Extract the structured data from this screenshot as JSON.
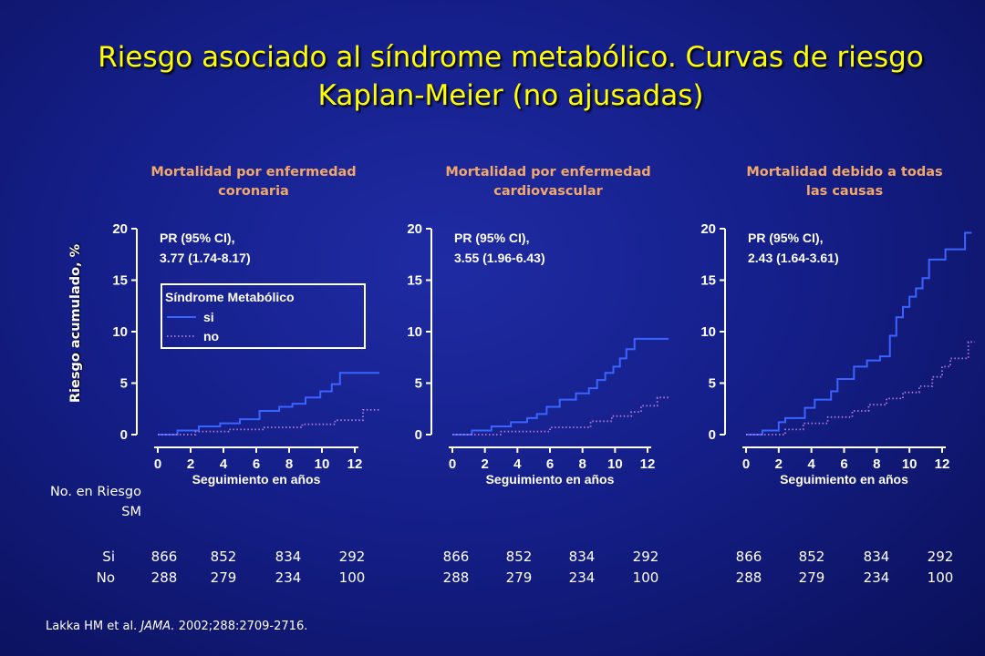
{
  "title_line1": "Riesgo asociado al síndrome metabólico. Curvas de riesgo",
  "title_line2": "Kaplan-Meier (no ajusadas)",
  "ylabel": "Riesgo acumulado, %",
  "risk_table": {
    "heading_line1": "No. en Riesgo",
    "heading_line2": "SM",
    "row_labels": [
      "Si",
      "No"
    ]
  },
  "citation": {
    "authors": "Lakka HM et al. ",
    "journal": "JAMA.",
    "ref": " 2002;288:2709-2716."
  },
  "colors": {
    "title": "#ffff00",
    "panel_title": "#f2a86a",
    "si_line": "#3a63ff",
    "no_line": "#b07ad8",
    "axis": "#ffffff"
  },
  "chart_data": [
    {
      "type": "line",
      "title_line1": "Mortalidad por enfermedad",
      "title_line2": "coronaria",
      "xlabel": "Seguimiento en años",
      "x_ticks": [
        0,
        2,
        4,
        6,
        8,
        10,
        12
      ],
      "y_ticks": [
        0,
        5,
        10,
        15,
        20
      ],
      "xlim": [
        0,
        13.5
      ],
      "ylim": [
        0,
        20
      ],
      "annotation_line1": "PR (95% CI),",
      "annotation_line2": "3.77 (1.74-8.17)",
      "legend": {
        "title": "Síndrome Metabólico",
        "entries": [
          "si",
          "no"
        ],
        "placement": "upper-center"
      },
      "series": [
        {
          "name": "si",
          "style": "solid",
          "points": [
            [
              0,
              0
            ],
            [
              1.2,
              0
            ],
            [
              1.2,
              0.4
            ],
            [
              2.5,
              0.4
            ],
            [
              2.5,
              0.8
            ],
            [
              3.8,
              0.8
            ],
            [
              3.8,
              1.1
            ],
            [
              5,
              1.1
            ],
            [
              5,
              1.5
            ],
            [
              6.2,
              1.5
            ],
            [
              6.2,
              2.3
            ],
            [
              7.4,
              2.3
            ],
            [
              7.4,
              2.7
            ],
            [
              8.2,
              2.7
            ],
            [
              8.2,
              3.0
            ],
            [
              9,
              3.0
            ],
            [
              9,
              3.6
            ],
            [
              9.9,
              3.6
            ],
            [
              9.9,
              4.2
            ],
            [
              10.6,
              4.2
            ],
            [
              10.6,
              4.9
            ],
            [
              11.1,
              4.9
            ],
            [
              11.1,
              6.0
            ],
            [
              13.5,
              6.0
            ]
          ]
        },
        {
          "name": "no",
          "style": "dotted",
          "points": [
            [
              0,
              0
            ],
            [
              2.3,
              0
            ],
            [
              2.3,
              0.3
            ],
            [
              4.3,
              0.3
            ],
            [
              4.3,
              0.5
            ],
            [
              6.4,
              0.5
            ],
            [
              6.4,
              0.7
            ],
            [
              8.8,
              0.7
            ],
            [
              8.8,
              1.0
            ],
            [
              10.8,
              1.0
            ],
            [
              10.8,
              1.4
            ],
            [
              12.5,
              1.4
            ],
            [
              12.5,
              2.4
            ],
            [
              13.5,
              2.4
            ]
          ]
        }
      ],
      "risk_si": [
        866,
        852,
        834,
        292
      ],
      "risk_no": [
        288,
        279,
        234,
        100
      ]
    },
    {
      "type": "line",
      "title_line1": "Mortalidad por enfermedad",
      "title_line2": "cardiovascular",
      "xlabel": "Seguimiento en años",
      "x_ticks": [
        0,
        2,
        4,
        6,
        8,
        10,
        12
      ],
      "y_ticks": [
        0,
        5,
        10,
        15,
        20
      ],
      "xlim": [
        0,
        13.5
      ],
      "ylim": [
        0,
        20
      ],
      "annotation_line1": "PR (95% CI),",
      "annotation_line2": "3.55 (1.96-6.43)",
      "series": [
        {
          "name": "si",
          "style": "solid",
          "points": [
            [
              0,
              0
            ],
            [
              1.2,
              0
            ],
            [
              1.2,
              0.4
            ],
            [
              2.4,
              0.4
            ],
            [
              2.4,
              0.8
            ],
            [
              3.6,
              0.8
            ],
            [
              3.6,
              1.2
            ],
            [
              4.6,
              1.2
            ],
            [
              4.6,
              1.6
            ],
            [
              5.2,
              1.6
            ],
            [
              5.2,
              2.0
            ],
            [
              5.8,
              2.0
            ],
            [
              5.8,
              2.7
            ],
            [
              6.6,
              2.7
            ],
            [
              6.6,
              3.4
            ],
            [
              7.6,
              3.4
            ],
            [
              7.6,
              4.0
            ],
            [
              8.4,
              4.0
            ],
            [
              8.4,
              4.5
            ],
            [
              8.9,
              4.5
            ],
            [
              8.9,
              5.3
            ],
            [
              9.4,
              5.3
            ],
            [
              9.4,
              6.0
            ],
            [
              9.9,
              6.0
            ],
            [
              9.9,
              6.6
            ],
            [
              10.3,
              6.6
            ],
            [
              10.3,
              7.4
            ],
            [
              10.7,
              7.4
            ],
            [
              10.7,
              8.3
            ],
            [
              11.2,
              8.3
            ],
            [
              11.2,
              9.3
            ],
            [
              13.3,
              9.3
            ]
          ]
        },
        {
          "name": "no",
          "style": "dotted",
          "points": [
            [
              0,
              0
            ],
            [
              3,
              0
            ],
            [
              3,
              0.3
            ],
            [
              6,
              0.3
            ],
            [
              6,
              0.7
            ],
            [
              8.5,
              0.7
            ],
            [
              8.5,
              1.3
            ],
            [
              9.8,
              1.3
            ],
            [
              9.8,
              1.8
            ],
            [
              11,
              1.8
            ],
            [
              11,
              2.2
            ],
            [
              11.6,
              2.2
            ],
            [
              11.6,
              2.8
            ],
            [
              12.6,
              2.8
            ],
            [
              12.6,
              3.6
            ],
            [
              13.3,
              3.6
            ]
          ]
        }
      ],
      "risk_si": [
        866,
        852,
        834,
        292
      ],
      "risk_no": [
        288,
        279,
        234,
        100
      ]
    },
    {
      "type": "line",
      "title_line1": "Mortalidad debido a todas",
      "title_line2": "las causas",
      "xlabel": "Seguimiento en años",
      "x_ticks": [
        0,
        2,
        4,
        6,
        8,
        10,
        12
      ],
      "y_ticks": [
        0,
        5,
        10,
        15,
        20
      ],
      "xlim": [
        0,
        13.5
      ],
      "ylim": [
        0,
        20
      ],
      "annotation_line1": "PR (95% CI),",
      "annotation_line2": "2.43 (1.64-3.61)",
      "series": [
        {
          "name": "si",
          "style": "solid",
          "points": [
            [
              0,
              0
            ],
            [
              1,
              0
            ],
            [
              1,
              0.4
            ],
            [
              2,
              0.4
            ],
            [
              2,
              1.2
            ],
            [
              2.4,
              1.2
            ],
            [
              2.4,
              1.6
            ],
            [
              3.6,
              1.6
            ],
            [
              3.6,
              2.6
            ],
            [
              4.2,
              2.6
            ],
            [
              4.2,
              3.4
            ],
            [
              5.2,
              3.4
            ],
            [
              5.2,
              4.2
            ],
            [
              5.6,
              4.2
            ],
            [
              5.6,
              5.4
            ],
            [
              6.6,
              5.4
            ],
            [
              6.6,
              6.6
            ],
            [
              7.4,
              6.6
            ],
            [
              7.4,
              7.2
            ],
            [
              8.2,
              7.2
            ],
            [
              8.2,
              7.6
            ],
            [
              8.8,
              7.6
            ],
            [
              8.8,
              9.6
            ],
            [
              9.2,
              9.6
            ],
            [
              9.2,
              11.4
            ],
            [
              9.6,
              11.4
            ],
            [
              9.6,
              12.4
            ],
            [
              10,
              12.4
            ],
            [
              10,
              13.4
            ],
            [
              10.4,
              13.4
            ],
            [
              10.4,
              14.2
            ],
            [
              10.8,
              14.2
            ],
            [
              10.8,
              15.2
            ],
            [
              11.2,
              15.2
            ],
            [
              11.2,
              17.0
            ],
            [
              12.2,
              17.0
            ],
            [
              12.2,
              18.0
            ],
            [
              13.4,
              18.0
            ],
            [
              13.4,
              19.6
            ],
            [
              13.8,
              19.6
            ]
          ]
        },
        {
          "name": "no",
          "style": "dotted",
          "points": [
            [
              0,
              0
            ],
            [
              2.4,
              0
            ],
            [
              2.4,
              0.5
            ],
            [
              3.5,
              0.5
            ],
            [
              3.5,
              1.1
            ],
            [
              5,
              1.1
            ],
            [
              5,
              1.7
            ],
            [
              6.5,
              1.7
            ],
            [
              6.5,
              2.3
            ],
            [
              7.5,
              2.3
            ],
            [
              7.5,
              2.9
            ],
            [
              8.6,
              2.9
            ],
            [
              8.6,
              3.5
            ],
            [
              9.6,
              3.5
            ],
            [
              9.6,
              4.1
            ],
            [
              10.6,
              4.1
            ],
            [
              10.6,
              4.7
            ],
            [
              11.4,
              4.7
            ],
            [
              11.4,
              5.6
            ],
            [
              12,
              5.6
            ],
            [
              12,
              6.6
            ],
            [
              12.5,
              6.6
            ],
            [
              12.5,
              7.4
            ],
            [
              13.6,
              7.4
            ],
            [
              13.6,
              9.0
            ],
            [
              14,
              9.0
            ]
          ]
        }
      ],
      "risk_si": [
        866,
        852,
        834,
        292
      ],
      "risk_no": [
        288,
        279,
        234,
        100
      ]
    }
  ]
}
